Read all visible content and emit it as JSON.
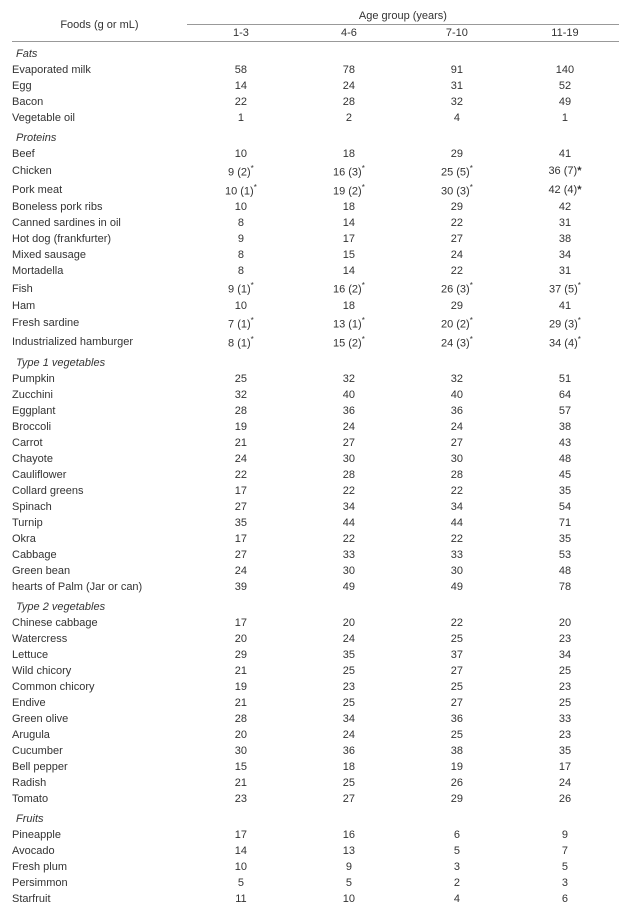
{
  "header": {
    "foods_label": "Foods (g or mL)",
    "age_group_label": "Age group (years)",
    "age_cols": [
      "1-3",
      "4-6",
      "7-10",
      "11-19"
    ]
  },
  "sections": [
    {
      "title": "Fats",
      "rows": [
        {
          "name": "Evaporated milk",
          "v": [
            "58",
            "78",
            "91",
            "140"
          ]
        },
        {
          "name": "Egg",
          "v": [
            "14",
            "24",
            "31",
            "52"
          ]
        },
        {
          "name": "Bacon",
          "v": [
            "22",
            "28",
            "32",
            "49"
          ]
        },
        {
          "name": "Vegetable oil",
          "v": [
            "1",
            "2",
            "4",
            "1"
          ]
        }
      ]
    },
    {
      "title": "Proteins",
      "rows": [
        {
          "name": "Beef",
          "v": [
            "10",
            "18",
            "29",
            "41"
          ]
        },
        {
          "name": "Chicken",
          "v": [
            "9 (2)",
            "16 (3)",
            "25 (5)",
            "36 (7)"
          ],
          "ast": [
            true,
            true,
            true,
            true
          ],
          "bold_last": true
        },
        {
          "name": "Pork meat",
          "v": [
            "10 (1)",
            "19 (2)",
            "30 (3)",
            "42 (4)"
          ],
          "ast": [
            true,
            true,
            true,
            true
          ],
          "bold_last": true
        },
        {
          "name": "Boneless pork ribs",
          "v": [
            "10",
            "18",
            "29",
            "42"
          ]
        },
        {
          "name": "Canned sardines in oil",
          "v": [
            "8",
            "14",
            "22",
            "31"
          ]
        },
        {
          "name": "Hot dog (frankfurter)",
          "v": [
            "9",
            "17",
            "27",
            "38"
          ]
        },
        {
          "name": "Mixed sausage",
          "v": [
            "8",
            "15",
            "24",
            "34"
          ]
        },
        {
          "name": "Mortadella",
          "v": [
            "8",
            "14",
            "22",
            "31"
          ]
        },
        {
          "name": "Fish",
          "v": [
            "9 (1)",
            "16 (2)",
            "26 (3)",
            "37 (5)"
          ],
          "ast": [
            true,
            true,
            true,
            true
          ]
        },
        {
          "name": "Ham",
          "v": [
            "10",
            "18",
            "29",
            "41"
          ]
        },
        {
          "name": "Fresh sardine",
          "v": [
            "7 (1)",
            "13 (1)",
            "20 (2)",
            "29 (3)"
          ],
          "ast": [
            true,
            true,
            true,
            true
          ]
        },
        {
          "name": "Industrialized  hamburger",
          "v": [
            "8 (1)",
            "15 (2)",
            "24 (3)",
            "34 (4)"
          ],
          "ast": [
            true,
            true,
            true,
            true
          ]
        }
      ]
    },
    {
      "title": "Type 1 vegetables",
      "rows": [
        {
          "name": "Pumpkin",
          "v": [
            "25",
            "32",
            "32",
            "51"
          ]
        },
        {
          "name": "Zucchini",
          "v": [
            "32",
            "40",
            "40",
            "64"
          ]
        },
        {
          "name": "Eggplant",
          "v": [
            "28",
            "36",
            "36",
            "57"
          ]
        },
        {
          "name": "Broccoli",
          "v": [
            "19",
            "24",
            "24",
            "38"
          ]
        },
        {
          "name": "Carrot",
          "v": [
            "21",
            "27",
            "27",
            "43"
          ]
        },
        {
          "name": "Chayote",
          "v": [
            "24",
            "30",
            "30",
            "48"
          ]
        },
        {
          "name": "Cauliflower",
          "v": [
            "22",
            "28",
            "28",
            "45"
          ]
        },
        {
          "name": "Collard greens",
          "v": [
            "17",
            "22",
            "22",
            "35"
          ]
        },
        {
          "name": "Spinach",
          "v": [
            "27",
            "34",
            "34",
            "54"
          ]
        },
        {
          "name": "Turnip",
          "v": [
            "35",
            "44",
            "44",
            "71"
          ]
        },
        {
          "name": "Okra",
          "v": [
            "17",
            "22",
            "22",
            "35"
          ]
        },
        {
          "name": "Cabbage",
          "v": [
            "27",
            "33",
            "33",
            "53"
          ]
        },
        {
          "name": "Green bean",
          "v": [
            "24",
            "30",
            "30",
            "48"
          ]
        },
        {
          "name": "hearts of Palm (Jar or can)",
          "v": [
            "39",
            "49",
            "49",
            "78"
          ]
        }
      ]
    },
    {
      "title": "Type 2 vegetables",
      "rows": [
        {
          "name": "Chinese cabbage",
          "v": [
            "17",
            "20",
            "22",
            "20"
          ]
        },
        {
          "name": "Watercress",
          "v": [
            "20",
            "24",
            "25",
            "23"
          ]
        },
        {
          "name": "Lettuce",
          "v": [
            "29",
            "35",
            "37",
            "34"
          ]
        },
        {
          "name": "Wild chicory",
          "v": [
            "21",
            "25",
            "27",
            "25"
          ]
        },
        {
          "name": "Common  chicory",
          "v": [
            "19",
            "23",
            "25",
            "23"
          ]
        },
        {
          "name": "Endive",
          "v": [
            "21",
            "25",
            "27",
            "25"
          ]
        },
        {
          "name": "Green olive",
          "v": [
            "28",
            "34",
            "36",
            "33"
          ]
        },
        {
          "name": "Arugula",
          "v": [
            "20",
            "24",
            "25",
            "23"
          ]
        },
        {
          "name": "Cucumber",
          "v": [
            "30",
            "36",
            "38",
            "35"
          ]
        },
        {
          "name": "Bell pepper",
          "v": [
            "15",
            "18",
            "19",
            "17"
          ]
        },
        {
          "name": "Radish",
          "v": [
            "21",
            "25",
            "26",
            "24"
          ]
        },
        {
          "name": "Tomato",
          "v": [
            "23",
            "27",
            "29",
            "26"
          ]
        }
      ]
    },
    {
      "title": "Fruits",
      "rows": [
        {
          "name": "Pineapple",
          "v": [
            "17",
            "16",
            "6",
            "9"
          ]
        },
        {
          "name": "Avocado",
          "v": [
            "14",
            "13",
            "5",
            "7"
          ]
        },
        {
          "name": "Fresh plum",
          "v": [
            "10",
            "9",
            "3",
            "5"
          ]
        },
        {
          "name": "Persimmon",
          "v": [
            "5",
            "5",
            "2",
            "3"
          ]
        },
        {
          "name": "Starfruit",
          "v": [
            "11",
            "10",
            "4",
            "6"
          ]
        }
      ]
    }
  ]
}
